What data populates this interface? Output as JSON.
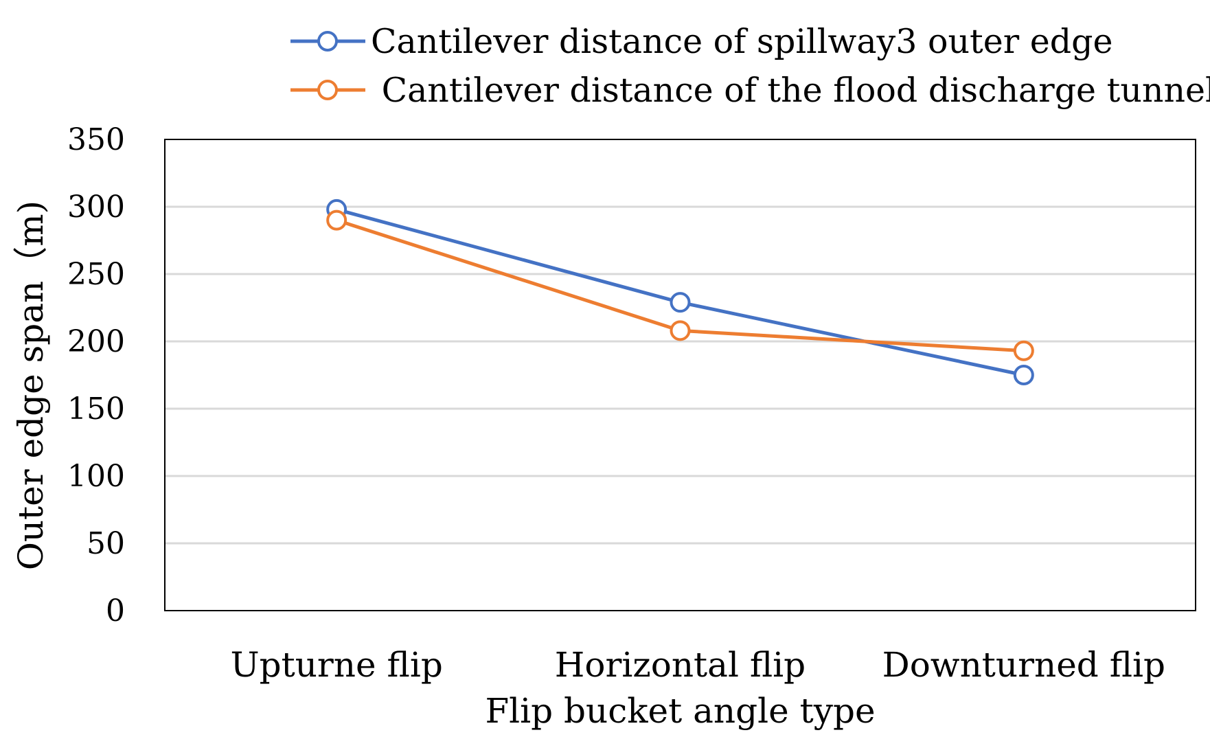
{
  "chart_data": {
    "type": "line",
    "title": "",
    "xlabel": "Flip bucket angle type",
    "ylabel": "Outer edge span（m)",
    "categories": [
      "Upturne flip",
      "Horizontal flip",
      "Downturned flip"
    ],
    "ylim": [
      0,
      350
    ],
    "yticks": [
      0,
      50,
      100,
      150,
      200,
      250,
      300,
      350
    ],
    "grid": true,
    "legend_position": "top",
    "series": [
      {
        "name": "Cantilever distance of spillway3 outer edge",
        "color": "#4472C4",
        "marker": "open-circle",
        "values": [
          298,
          229,
          175
        ]
      },
      {
        "name": " Cantilever distance of the flood discharge tunnel",
        "color": "#ED7D31",
        "marker": "open-circle",
        "values": [
          290,
          208,
          193
        ]
      }
    ]
  }
}
